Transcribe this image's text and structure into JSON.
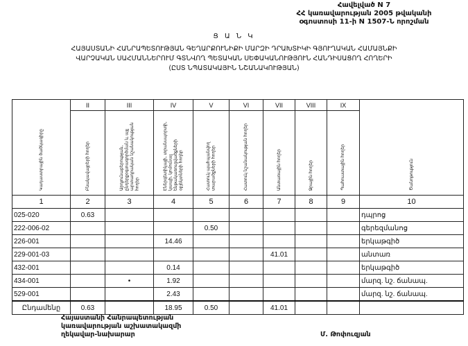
{
  "annex": {
    "lines": [
      "Հավելված N 7",
      "ՀՀ կառավարության 2005 թվականի",
      "օգոստոսի 11-ի N 1507-Ն որոշման"
    ]
  },
  "title": {
    "label": "Ց Ա Ն Կ",
    "lines": [
      "ՀԱՅԱՍՏԱՆԻ ՀԱՆՐԱՊԵՏՈՒԹՅԱՆ ԳԵՂԱՐՔՈՒՆԻՔԻ ՄԱՐԶԻ ԴՐԱԽՏԻԿԻ ԳՅՈՒՂԱԿԱՆ ՀԱՄԱՅՆՔԻ",
      "ՎԱՐՉԱԿԱՆ ՍԱՀՄԱՆՆԵՐՈՒՄ ԳՏՆՎՈՂ ՊԵՏԱԿԱՆ ՍԵՓԱԿԱՆՈՒԹՅՈՒՆ ՀԱՆԴԻՍԱՑՈՂ ՀՈՂԵՐԻ",
      "(ԸՍՏ ՆՊԱՏԱԿԱՅԻՆ ՆՇԱՆԱԿՈՒԹՅԱՆ)"
    ]
  },
  "table": {
    "roman": [
      "II",
      "III",
      "IV",
      "V",
      "VI",
      "VII",
      "VIII",
      "IX"
    ],
    "headers": [
      "Կադաստրային ծածկագիրը",
      "Բնակավայրերի հողեր",
      "Արդյունաբերության, ընդերքօգտագործման և այլ արտադրական նշանակության հողեր",
      "Էներգետիկայի, տրանսպորտի, կապի, կոմունալ ենթակառուցվածքների օբյեկտների հողեր",
      "Հատուկ պահպանվող տարածքների հողեր",
      "Հատուկ նշանակության հողեր",
      "Անտառային հողեր",
      "Ջրային հողեր",
      "Պահուստային հողեր",
      "Ծանոթություն"
    ],
    "numbers": [
      "1",
      "2",
      "3",
      "4",
      "5",
      "6",
      "7",
      "8",
      "9",
      "10"
    ],
    "rows": [
      [
        "025-020",
        "0.63",
        "",
        "",
        "",
        "",
        "",
        "",
        "",
        "դպրոց"
      ],
      [
        "222-006-02",
        "",
        "",
        "",
        "0.50",
        "",
        "",
        "",
        "",
        "գերեզմանոց"
      ],
      [
        "226-001",
        "",
        "",
        "14.46",
        "",
        "",
        "",
        "",
        "",
        "երկաթգիծ"
      ],
      [
        "229-001-03",
        "",
        "",
        "",
        "",
        "",
        "41.01",
        "",
        "",
        "անտառ"
      ],
      [
        "432-001",
        "",
        "",
        "0.14",
        "",
        "",
        "",
        "",
        "",
        "երկաթգիծ"
      ],
      [
        "434-001",
        "",
        "•",
        "1.92",
        "",
        "",
        "",
        "",
        "",
        "մարզ. նշ. ճանապ."
      ],
      [
        "529-001",
        "",
        "",
        "2.43",
        "",
        "",
        "",
        "",
        "",
        "մարզ. նշ. ճանապ."
      ]
    ],
    "total": [
      "Ընդամենը",
      "0.63",
      "",
      "18.95",
      "0.50",
      "",
      "41.01",
      "",
      "",
      ""
    ]
  },
  "footer": {
    "lines": [
      "Հայաստանի Հանրապետության",
      "կառավարության աշխատակազմի",
      "ղեկավար-նախարար"
    ],
    "signatory": "Մ. Թոփուզյան"
  }
}
